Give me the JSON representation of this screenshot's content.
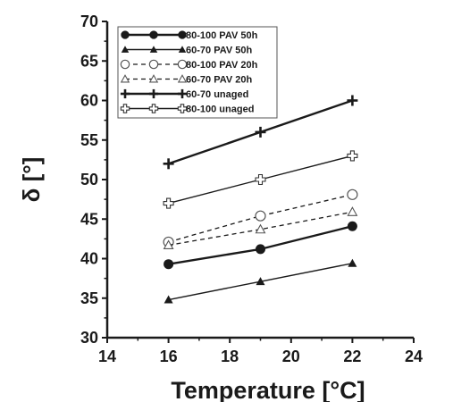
{
  "chart_data": {
    "type": "line",
    "xlabel": "Temperature [°C]",
    "ylabel": "δ [°]",
    "xlim": [
      14,
      24
    ],
    "ylim": [
      30,
      70
    ],
    "xticks": [
      14,
      16,
      18,
      20,
      22,
      24
    ],
    "yticks": [
      30,
      35,
      40,
      45,
      50,
      55,
      60,
      65,
      70
    ],
    "grid": false,
    "legend_position": "top-left",
    "x": [
      16,
      19,
      22
    ],
    "series": [
      {
        "name": "80-100 PAV 50h",
        "values": [
          39.3,
          41.2,
          44.1
        ],
        "marker": "filled-circle",
        "line": "solid"
      },
      {
        "name": "60-70 PAV 50h",
        "values": [
          34.8,
          37.1,
          39.4
        ],
        "marker": "filled-triangle",
        "line": "solid"
      },
      {
        "name": "80-100 PAV 20h",
        "values": [
          42.1,
          45.4,
          48.1
        ],
        "marker": "open-circle",
        "line": "dashed"
      },
      {
        "name": "60-70 PAV 20h",
        "values": [
          41.7,
          43.7,
          45.9
        ],
        "marker": "open-triangle",
        "line": "dashed"
      },
      {
        "name": "60-70 unaged",
        "values": [
          52.0,
          56.0,
          60.0
        ],
        "marker": "plus",
        "line": "solid"
      },
      {
        "name": "80-100 unaged",
        "values": [
          47.0,
          50.0,
          53.0
        ],
        "marker": "open-plus",
        "line": "solid"
      }
    ]
  }
}
